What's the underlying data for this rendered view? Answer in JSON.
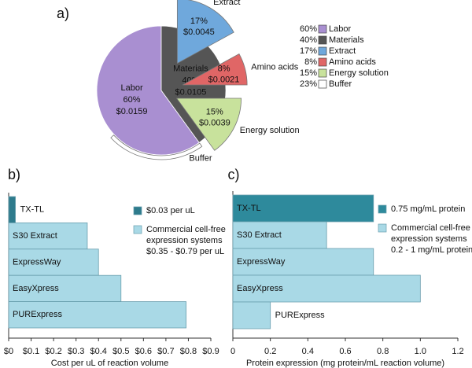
{
  "chart_data": [
    {
      "type": "pie",
      "label": "a)",
      "categories": [
        "Labor",
        "Materials"
      ],
      "values": [
        60,
        40
      ],
      "value_labels": [
        "60%",
        "40%"
      ],
      "cost_labels": [
        "$0.0159",
        "$0.0105"
      ],
      "colors": [
        "#a98fd1",
        "#555555"
      ],
      "sub_categories": [
        "Extract",
        "Amino acids",
        "Energy solution",
        "Buffer"
      ],
      "sub_values": [
        17,
        8,
        15,
        23
      ],
      "sub_value_labels": [
        "17%",
        "8%",
        "15%",
        "23%"
      ],
      "sub_cost_labels": [
        "$0.0045",
        "$0.0021",
        "$0.0039",
        null
      ],
      "sub_colors": [
        "#6fa8dc",
        "#e06666",
        "#c8e29c",
        "#ffffff"
      ]
    },
    {
      "type": "barh",
      "label": "b)",
      "categories": [
        "TX-TL",
        "S30 Extract",
        "ExpressWay",
        "EasyXpress",
        "PURExpress"
      ],
      "values": [
        0.03,
        0.35,
        0.4,
        0.5,
        0.79
      ],
      "colors": [
        "#2e7b8c",
        "#a9d9e6",
        "#a9d9e6",
        "#a9d9e6",
        "#a9d9e6"
      ],
      "xlabel": "Cost per uL of reaction volume",
      "xlim": [
        0,
        0.9
      ],
      "xticks": [
        {
          "value": 0,
          "label": "$0"
        },
        {
          "value": 0.1,
          "label": "$0.1"
        },
        {
          "value": 0.2,
          "label": "$0.2"
        },
        {
          "value": 0.3,
          "label": "$0.3"
        },
        {
          "value": 0.4,
          "label": "$0.4"
        },
        {
          "value": 0.5,
          "label": "$0.5"
        },
        {
          "value": 0.6,
          "label": "$0.6"
        },
        {
          "value": 0.7,
          "label": "$0.7"
        },
        {
          "value": 0.8,
          "label": "$0.8"
        },
        {
          "value": 0.9,
          "label": "$0.9"
        }
      ],
      "legend": [
        {
          "name": [
            "$0.03 per uL"
          ],
          "color": "#2e7b8c"
        },
        {
          "name": [
            "Commercial cell-free",
            "expression systems",
            "$0.35 - $0.79 per uL"
          ],
          "color": "#a9d9e6"
        }
      ]
    },
    {
      "type": "barh",
      "label": "c)",
      "categories": [
        "TX-TL",
        "S30 Extract",
        "ExpressWay",
        "EasyXpress",
        "PURExpress"
      ],
      "values": [
        0.75,
        0.5,
        0.75,
        1.0,
        0.2
      ],
      "colors": [
        "#2e8a9c",
        "#a9d9e6",
        "#a9d9e6",
        "#a9d9e6",
        "#a9d9e6"
      ],
      "xlabel": "Protein expression (mg protein/mL reaction volume)",
      "xlim": [
        0,
        1.2
      ],
      "xticks": [
        0,
        0.2,
        0.4,
        0.6,
        0.8,
        {
          "value": 1.0,
          "label": "1.0"
        },
        1.2
      ],
      "legend": [
        {
          "name": [
            "0.75 mg/mL protein"
          ],
          "color": "#2e8a9c"
        },
        {
          "name": [
            "Commercial cell-free",
            "expression systems",
            "0.2 - 1 mg/mL protein"
          ],
          "color": "#a9d9e6"
        }
      ]
    }
  ]
}
